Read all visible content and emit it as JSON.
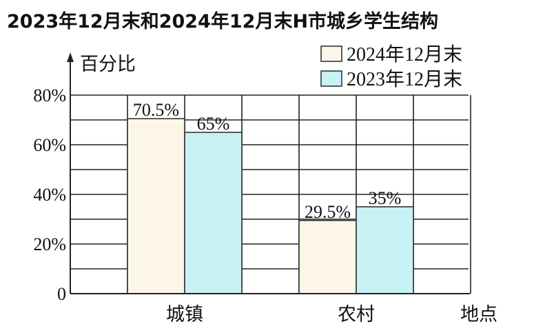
{
  "chart_data": {
    "type": "bar",
    "title": "2023年12月末和2024年12月末H市城乡学生结构",
    "ylabel": "百分比",
    "xlabel": "地点",
    "categories": [
      "城镇",
      "农村"
    ],
    "series": [
      {
        "name": "2024年12月末",
        "values": [
          70.5,
          29.5
        ],
        "labels": [
          "70.5%",
          "29.5%"
        ],
        "color": "#fcf6e8"
      },
      {
        "name": "2023年12月末",
        "values": [
          65,
          35
        ],
        "labels": [
          "65%",
          "35%"
        ],
        "color": "#c8f2f5"
      }
    ],
    "yticks": [
      "0",
      "20%",
      "40%",
      "60%",
      "80%"
    ],
    "ylim": [
      0,
      80
    ],
    "grid": true,
    "legend": "top-right"
  }
}
